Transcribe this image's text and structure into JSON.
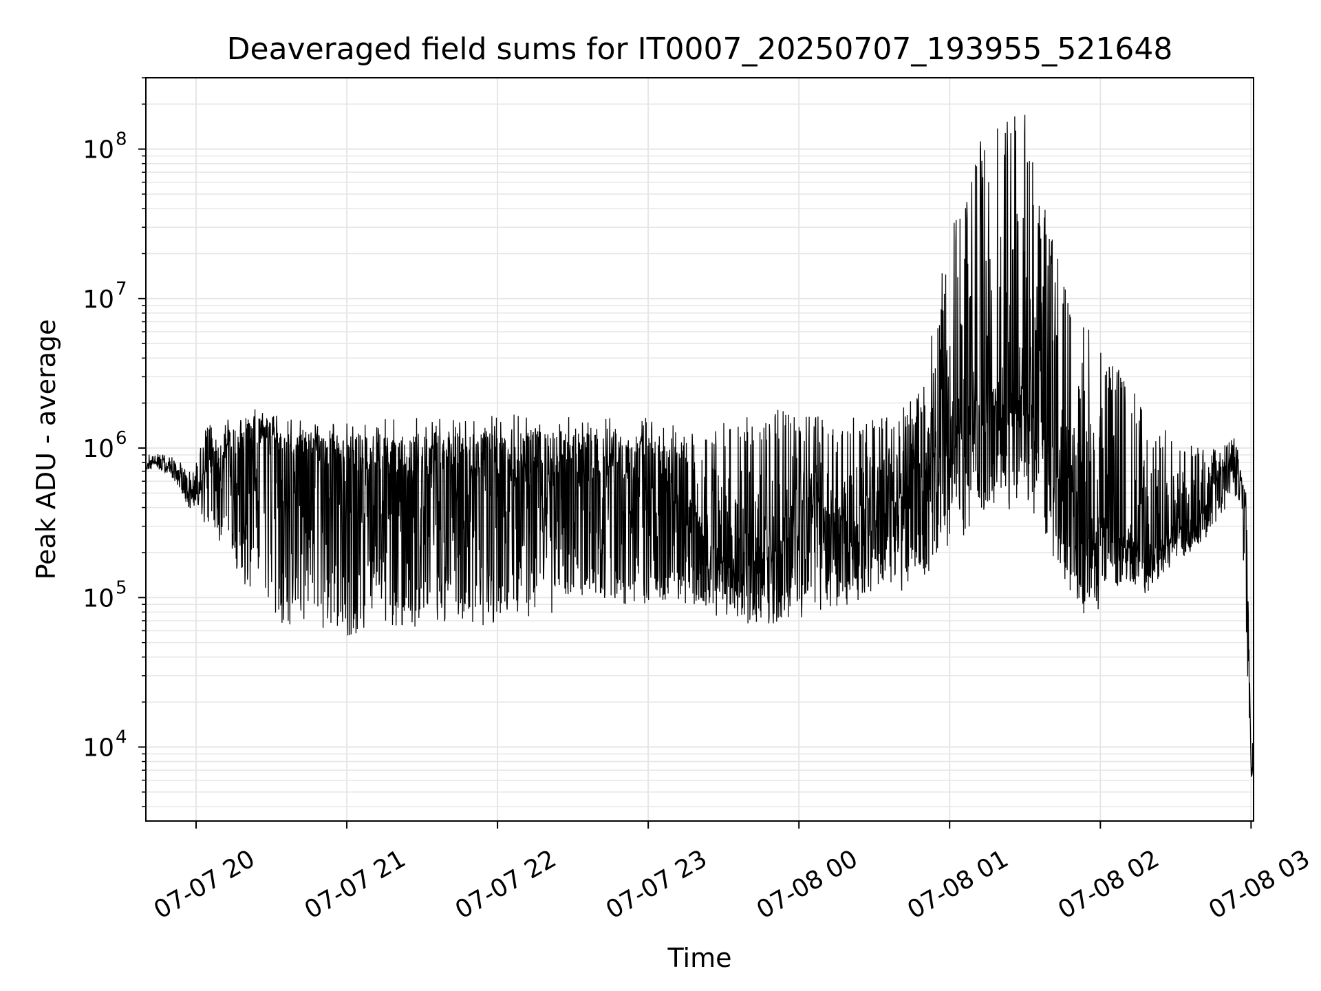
{
  "chart_data": {
    "type": "line",
    "title": "Deaveraged field sums for IT0007_20250707_193955_521648",
    "xlabel": "Time",
    "ylabel": "Peak ADU - average",
    "yscale": "log",
    "ylim": [
      3200,
      300000000
    ],
    "xlim": [
      "2025-07-07 19:40",
      "2025-07-08 03:01"
    ],
    "grid": true,
    "line_color": "#000000",
    "grid_color": "#e6e6e6",
    "x_ticks": [
      {
        "value": "2025-07-07 20:00",
        "label": "07-07 20"
      },
      {
        "value": "2025-07-07 21:00",
        "label": "07-07 21"
      },
      {
        "value": "2025-07-07 22:00",
        "label": "07-07 22"
      },
      {
        "value": "2025-07-07 23:00",
        "label": "07-07 23"
      },
      {
        "value": "2025-07-08 00:00",
        "label": "07-08 00"
      },
      {
        "value": "2025-07-08 01:00",
        "label": "07-08 01"
      },
      {
        "value": "2025-07-08 02:00",
        "label": "07-08 02"
      },
      {
        "value": "2025-07-08 03:00",
        "label": "07-08 03"
      }
    ],
    "y_ticks": [
      {
        "value": 10000,
        "base": "10",
        "exp": "4"
      },
      {
        "value": 100000,
        "base": "10",
        "exp": "5"
      },
      {
        "value": 1000000,
        "base": "10",
        "exp": "6"
      },
      {
        "value": 10000000,
        "base": "10",
        "exp": "7"
      },
      {
        "value": 100000000,
        "base": "10",
        "exp": "8"
      }
    ],
    "series": [
      {
        "x": [
          "2025-07-07 19:40",
          "2025-07-07 19:43",
          "2025-07-07 19:46",
          "2025-07-07 19:50",
          "2025-07-07 19:54",
          "2025-07-07 19:57",
          "2025-07-07 20:00",
          "2025-07-07 20:04",
          "2025-07-07 20:08",
          "2025-07-07 20:12",
          "2025-07-07 20:16",
          "2025-07-07 20:20",
          "2025-07-07 20:25",
          "2025-07-07 20:30",
          "2025-07-07 20:36",
          "2025-07-07 20:42",
          "2025-07-07 20:48",
          "2025-07-07 20:54",
          "2025-07-07 21:00",
          "2025-07-07 21:10",
          "2025-07-07 21:20",
          "2025-07-07 21:30",
          "2025-07-07 21:40",
          "2025-07-07 21:50",
          "2025-07-07 22:00",
          "2025-07-07 22:10",
          "2025-07-07 22:20",
          "2025-07-07 22:30",
          "2025-07-07 22:40",
          "2025-07-07 22:50",
          "2025-07-07 23:00",
          "2025-07-07 23:10",
          "2025-07-07 23:20",
          "2025-07-07 23:30",
          "2025-07-07 23:40",
          "2025-07-07 23:50",
          "2025-07-08 00:00",
          "2025-07-08 00:10",
          "2025-07-08 00:20",
          "2025-07-08 00:30",
          "2025-07-08 00:40",
          "2025-07-08 00:50",
          "2025-07-08 01:00",
          "2025-07-08 01:10",
          "2025-07-08 01:20",
          "2025-07-08 01:30",
          "2025-07-08 01:40",
          "2025-07-08 01:50",
          "2025-07-08 02:00",
          "2025-07-08 02:10",
          "2025-07-08 02:20",
          "2025-07-08 02:30",
          "2025-07-08 02:40",
          "2025-07-08 02:45",
          "2025-07-08 02:50",
          "2025-07-08 02:54",
          "2025-07-08 02:56",
          "2025-07-08 02:58",
          "2025-07-08 03:00",
          "2025-07-08 03:01"
        ],
        "y": [
          800000,
          820000,
          790000,
          760000,
          680000,
          520000,
          600000,
          750000,
          900000,
          1100000,
          950000,
          1400000,
          1200000,
          1300000,
          900000,
          1100000,
          1000000,
          950000,
          900000,
          850000,
          800000,
          780000,
          820000,
          800000,
          760000,
          800000,
          850000,
          820000,
          780000,
          750000,
          700000,
          600000,
          400000,
          180000,
          200000,
          250000,
          600000,
          500000,
          300000,
          350000,
          600000,
          900000,
          1500000,
          2500000,
          3000000,
          2800000,
          1200000,
          600000,
          400000,
          250000,
          230000,
          280000,
          400000,
          600000,
          800000,
          1000000,
          600000,
          500000,
          8000,
          9000
        ],
        "upper": [
          900000,
          950000,
          920000,
          880000,
          820000,
          700000,
          800000,
          1400000,
          1500000,
          1600000,
          1700000,
          1800000,
          2000000,
          1700000,
          1600000,
          1550000,
          1500000,
          1500000,
          1500000,
          1600000,
          1550000,
          1600000,
          1650000,
          1600000,
          1650000,
          1700000,
          1750000,
          1700000,
          1650000,
          1600000,
          1600000,
          1500000,
          1200000,
          1500000,
          1700000,
          1800000,
          1800000,
          1700000,
          1600000,
          1600000,
          1700000,
          3000000,
          30000000,
          120000000,
          160000000,
          170000000,
          30000000,
          8000000,
          5000000,
          3000000,
          1500000,
          1300000,
          1000000,
          1000000,
          1100000,
          1200000,
          700000,
          450000,
          12000,
          20000
        ],
        "lower": [
          700000,
          720000,
          700000,
          650000,
          500000,
          400000,
          380000,
          300000,
          250000,
          220000,
          150000,
          100000,
          80000,
          70000,
          65000,
          60000,
          60000,
          58000,
          55000,
          60000,
          62000,
          60000,
          62000,
          65000,
          60000,
          70000,
          75000,
          80000,
          80000,
          85000,
          90000,
          90000,
          85000,
          70000,
          65000,
          60000,
          70000,
          80000,
          90000,
          100000,
          110000,
          120000,
          200000,
          300000,
          400000,
          350000,
          200000,
          70000,
          80000,
          120000,
          100000,
          180000,
          200000,
          300000,
          380000,
          450000,
          380000,
          60000,
          6000,
          7000
        ]
      }
    ]
  }
}
